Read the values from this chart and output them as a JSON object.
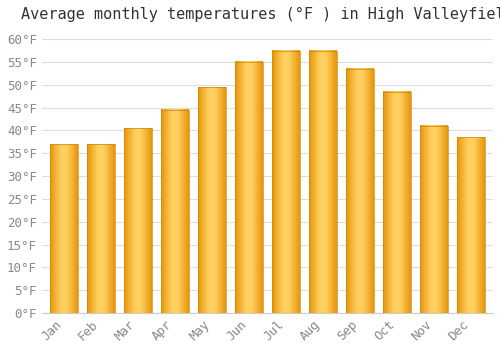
{
  "title": "Average monthly temperatures (°F ) in High Valleyfield",
  "months": [
    "Jan",
    "Feb",
    "Mar",
    "Apr",
    "May",
    "Jun",
    "Jul",
    "Aug",
    "Sep",
    "Oct",
    "Nov",
    "Dec"
  ],
  "values": [
    37,
    37,
    40.5,
    44.5,
    49.5,
    55,
    57.5,
    57.5,
    53.5,
    48.5,
    41,
    38.5
  ],
  "bar_color_left": "#F5A623",
  "bar_color_center": "#FFD060",
  "bar_color_right": "#F5A623",
  "bar_edge_color": "#E8A020",
  "background_color": "#FFFFFF",
  "plot_bg_color": "#FFFFFF",
  "grid_color": "#DDDDDD",
  "ylim": [
    0,
    62
  ],
  "yticks": [
    0,
    5,
    10,
    15,
    20,
    25,
    30,
    35,
    40,
    45,
    50,
    55,
    60
  ],
  "title_fontsize": 11,
  "tick_fontsize": 9,
  "tick_color": "#888888",
  "title_color": "#333333",
  "font_family": "monospace",
  "bar_width": 0.75
}
